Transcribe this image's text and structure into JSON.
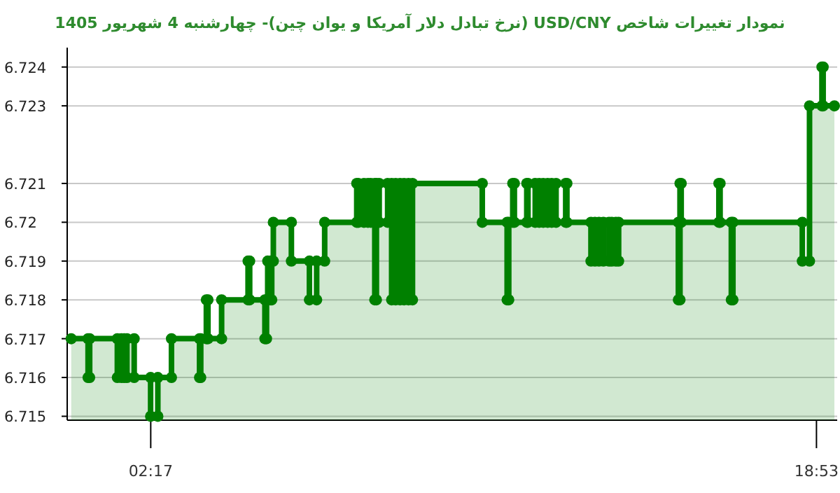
{
  "chart_data": {
    "type": "area",
    "title": "نمودار تغییرات شاخص USD/CNY (نرخ تبادل دلار آمریکا و یوان چین)- چهارشنبه  4 شهریور 1405",
    "x": [
      0.3,
      0.72,
      0.72,
      0.76,
      0.76,
      1.45,
      1.45,
      1.55,
      1.55,
      1.62,
      1.62,
      1.69,
      1.69,
      1.87,
      1.87,
      2.28,
      2.28,
      2.46,
      2.46,
      2.8,
      2.8,
      3.5,
      3.5,
      3.53,
      3.53,
      3.67,
      3.67,
      3.71,
      3.71,
      4.05,
      4.05,
      4.71,
      4.71,
      4.75,
      4.75,
      5.13,
      5.13,
      5.17,
      5.17,
      5.2,
      5.2,
      5.27,
      5.27,
      5.3,
      5.3,
      5.34,
      5.34,
      5.79,
      5.79,
      6.24,
      6.24,
      6.42,
      6.42,
      6.62,
      6.62,
      7.42,
      7.42,
      7.46,
      7.46,
      7.6,
      7.6,
      7.7,
      7.7,
      7.77,
      7.77,
      7.87,
      7.87,
      7.91,
      7.91,
      7.98,
      7.98,
      8.19,
      8.19,
      8.29,
      8.29,
      8.39,
      8.39,
      8.5,
      8.5,
      8.6,
      8.6,
      8.71,
      8.71,
      8.81,
      8.81,
      10.55,
      10.55,
      11.17,
      11.17,
      11.21,
      11.21,
      11.31,
      11.31,
      11.35,
      11.35,
      11.66,
      11.66,
      11.69,
      11.69,
      11.87,
      11.87,
      11.97,
      11.97,
      12.07,
      12.07,
      12.18,
      12.18,
      12.28,
      12.28,
      12.39,
      12.39,
      12.63,
      12.63,
      12.66,
      12.66,
      13.26,
      13.26,
      13.36,
      13.36,
      13.46,
      13.46,
      13.57,
      13.57,
      13.71,
      13.71,
      13.78,
      13.78,
      13.88,
      13.88,
      13.95,
      13.95,
      15.44,
      15.44,
      15.48,
      15.48,
      15.51,
      15.51,
      16.45,
      16.45,
      16.48,
      16.48,
      16.76,
      16.76,
      16.8,
      16.8,
      18.53,
      18.53,
      18.71,
      18.71,
      19.02,
      19.02,
      19.05,
      19.05,
      19.33
    ],
    "series": [
      {
        "color": "#008000",
        "values": [
          6.717,
          6.717,
          6.716,
          6.716,
          6.717,
          6.717,
          6.716,
          6.716,
          6.717,
          6.717,
          6.716,
          6.716,
          6.717,
          6.717,
          6.716,
          6.716,
          6.715,
          6.715,
          6.716,
          6.716,
          6.717,
          6.717,
          6.716,
          6.716,
          6.717,
          6.717,
          6.718,
          6.718,
          6.717,
          6.717,
          6.718,
          6.718,
          6.719,
          6.719,
          6.718,
          6.718,
          6.717,
          6.717,
          6.718,
          6.718,
          6.719,
          6.719,
          6.718,
          6.718,
          6.719,
          6.719,
          6.72,
          6.72,
          6.719,
          6.719,
          6.718,
          6.718,
          6.719,
          6.719,
          6.72,
          6.72,
          6.721,
          6.721,
          6.72,
          6.72,
          6.721,
          6.721,
          6.72,
          6.72,
          6.721,
          6.721,
          6.718,
          6.718,
          6.721,
          6.721,
          6.72,
          6.72,
          6.721,
          6.721,
          6.718,
          6.718,
          6.721,
          6.721,
          6.718,
          6.718,
          6.721,
          6.721,
          6.718,
          6.718,
          6.721,
          6.721,
          6.72,
          6.72,
          6.718,
          6.718,
          6.72,
          6.72,
          6.721,
          6.721,
          6.72,
          6.72,
          6.721,
          6.721,
          6.72,
          6.72,
          6.721,
          6.721,
          6.72,
          6.72,
          6.721,
          6.721,
          6.72,
          6.72,
          6.721,
          6.721,
          6.72,
          6.72,
          6.721,
          6.721,
          6.72,
          6.72,
          6.719,
          6.719,
          6.72,
          6.72,
          6.719,
          6.719,
          6.72,
          6.72,
          6.719,
          6.719,
          6.72,
          6.72,
          6.719,
          6.719,
          6.72,
          6.72,
          6.718,
          6.718,
          6.721,
          6.721,
          6.72,
          6.72,
          6.721,
          6.721,
          6.72,
          6.72,
          6.718,
          6.718,
          6.72,
          6.72,
          6.719,
          6.719,
          6.723,
          6.723,
          6.724,
          6.724,
          6.723,
          6.723
        ]
      }
    ],
    "xlim": [
      0.2,
      19.4
    ],
    "ylim": [
      6.7149,
      6.7245
    ],
    "xticks": [
      {
        "value": 2.283,
        "label": "02:17"
      },
      {
        "value": 18.883,
        "label": "18:53"
      }
    ],
    "yticks": [
      6.715,
      6.716,
      6.717,
      6.718,
      6.719,
      6.72,
      6.721,
      6.723,
      6.724
    ],
    "grid": "y",
    "marker": "circle"
  }
}
